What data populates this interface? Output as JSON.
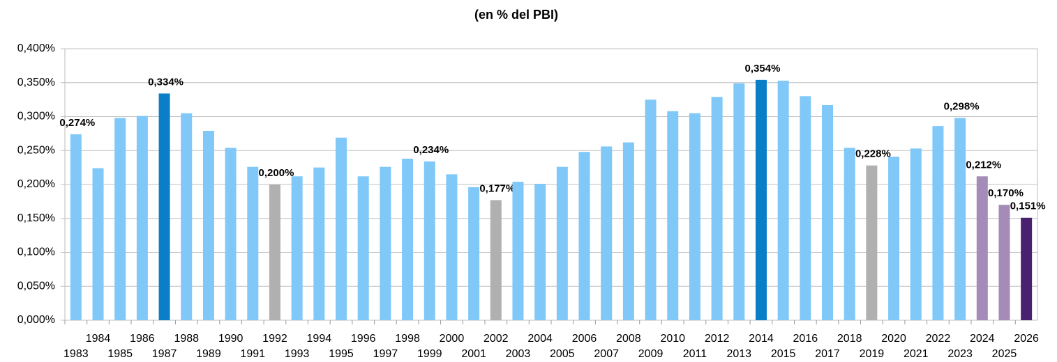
{
  "chart_data": {
    "type": "bar",
    "title": "(en % del PBI)",
    "categories": [
      "1983",
      "1984",
      "1985",
      "1986",
      "1987",
      "1988",
      "1989",
      "1990",
      "1991",
      "1992",
      "1993",
      "1994",
      "1995",
      "1996",
      "1997",
      "1998",
      "1999",
      "2000",
      "2001",
      "2002",
      "2003",
      "2004",
      "2005",
      "2006",
      "2007",
      "2008",
      "2009",
      "2010",
      "2011",
      "2012",
      "2013",
      "2014",
      "2015",
      "2016",
      "2017",
      "2018",
      "2019",
      "2020",
      "2021",
      "2022",
      "2023",
      "2024",
      "2025",
      "2026"
    ],
    "values": [
      0.274,
      0.224,
      0.298,
      0.301,
      0.334,
      0.305,
      0.279,
      0.254,
      0.226,
      0.2,
      0.212,
      0.225,
      0.269,
      0.212,
      0.226,
      0.238,
      0.234,
      0.215,
      0.196,
      0.177,
      0.204,
      0.201,
      0.226,
      0.248,
      0.256,
      0.262,
      0.325,
      0.308,
      0.305,
      0.329,
      0.349,
      0.354,
      0.353,
      0.33,
      0.317,
      0.254,
      0.228,
      0.241,
      0.253,
      0.286,
      0.298,
      0.212,
      0.17,
      0.151
    ],
    "value_labels": [
      "0,274%",
      null,
      null,
      null,
      "0,334%",
      null,
      null,
      null,
      null,
      "0,200%",
      null,
      null,
      null,
      null,
      null,
      null,
      "0,234%",
      null,
      null,
      "0,177%",
      null,
      null,
      null,
      null,
      null,
      null,
      null,
      null,
      null,
      null,
      null,
      "0,354%",
      null,
      null,
      null,
      null,
      "0,228%",
      null,
      null,
      null,
      "0,298%",
      "0,212%",
      "0,170%",
      "0,151%"
    ],
    "colors": [
      "#80c8f8",
      "#80c8f8",
      "#80c8f8",
      "#80c8f8",
      "#0a7fc8",
      "#80c8f8",
      "#80c8f8",
      "#80c8f8",
      "#80c8f8",
      "#b0b0b0",
      "#80c8f8",
      "#80c8f8",
      "#80c8f8",
      "#80c8f8",
      "#80c8f8",
      "#80c8f8",
      "#80c8f8",
      "#80c8f8",
      "#80c8f8",
      "#b0b0b0",
      "#80c8f8",
      "#80c8f8",
      "#80c8f8",
      "#80c8f8",
      "#80c8f8",
      "#80c8f8",
      "#80c8f8",
      "#80c8f8",
      "#80c8f8",
      "#80c8f8",
      "#80c8f8",
      "#0a7fc8",
      "#80c8f8",
      "#80c8f8",
      "#80c8f8",
      "#80c8f8",
      "#b0b0b0",
      "#80c8f8",
      "#80c8f8",
      "#80c8f8",
      "#80c8f8",
      "#a48bb8",
      "#a48bb8",
      "#4a2070"
    ],
    "ylim": [
      0,
      0.4
    ],
    "yticks": [
      {
        "value": 0,
        "label": "0,000%"
      },
      {
        "value": 0.05,
        "label": "0,050%"
      },
      {
        "value": 0.1,
        "label": "0,100%"
      },
      {
        "value": 0.15,
        "label": "0,150%"
      },
      {
        "value": 0.2,
        "label": "0,200%"
      },
      {
        "value": 0.25,
        "label": "0,250%"
      },
      {
        "value": 0.3,
        "label": "0,300%"
      },
      {
        "value": 0.35,
        "label": "0,350%"
      },
      {
        "value": 0.4,
        "label": "0,400%"
      }
    ],
    "grid": true
  }
}
